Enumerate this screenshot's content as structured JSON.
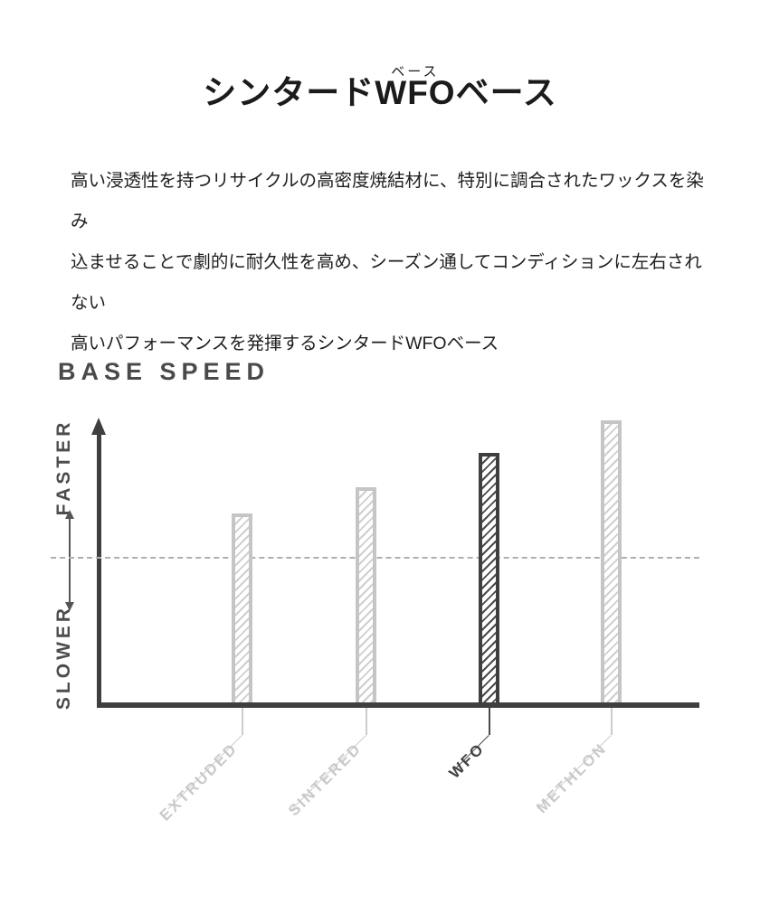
{
  "page": {
    "title": {
      "prefix": "シンタード",
      "ruby_base": "WFO",
      "ruby_text": "ベース",
      "suffix": "ベース"
    },
    "description_lines": [
      "高い浸透性を持つリサイクルの高密度焼結材に、特別に調合されたワックスを染み",
      "込ませることで劇的に耐久性を高め、シーズン通してコンディションに左右されない",
      "高いパフォーマンスを発揮するシンタードWFOベース"
    ]
  },
  "chart_data": {
    "type": "bar",
    "title": "BASE SPEED",
    "categories": [
      "EXTRUDED",
      "SINTERED",
      "WFO",
      "METHLON"
    ],
    "values": [
      67,
      76,
      88,
      99
    ],
    "highlight_category": "WFO",
    "baseline_value": 52,
    "ylim": [
      0,
      100
    ],
    "xlabel": "",
    "ylabel": "",
    "y_axis_top_label": "FASTER",
    "y_axis_bottom_label": "SLOWER",
    "grid": "single horizontal dashed midline",
    "legend_position": "none",
    "colors": {
      "highlight_bar": "#3f3f3f",
      "muted_bar": "#c5c5c5",
      "axis": "#3f3f3f",
      "dashed_line": "#b0b0b0",
      "dark_text": "#4a4a4a",
      "light_text": "#c9c9c9"
    }
  }
}
